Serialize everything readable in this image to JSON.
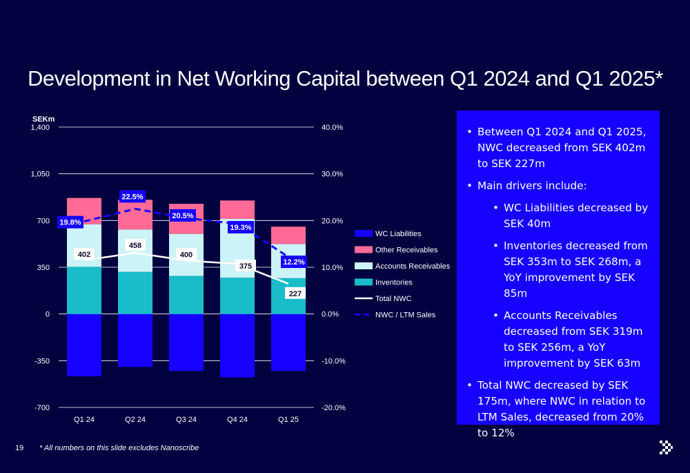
{
  "title": "Development in Net Working Capital between Q1 2024 and Q1 2025*",
  "footnote": "* All numbers on this slide excludes Nanoscribe",
  "page_number": "19",
  "logo_icon": "double-chevron-right-icon",
  "colors": {
    "background": "#02013f",
    "wc_liabilities": "#1600ff",
    "other_receivables": "#ff6b96",
    "accounts_receivables": "#ccf3f8",
    "inventories": "#19bcc8",
    "total_nwc": "#ffffff",
    "nwc_ltm": "#1600ff",
    "panel": "#1600ff"
  },
  "chart_data": {
    "type": "bar",
    "unit_label": "SEKm",
    "categories": [
      "Q1 24",
      "Q2 24",
      "Q3 24",
      "Q4 24",
      "Q1 25"
    ],
    "ylim": [
      -700,
      1400
    ],
    "yticks": [
      "1,400",
      "1,050",
      "700",
      "350",
      "0",
      "-350",
      "-700"
    ],
    "ytick_values": [
      1400,
      1050,
      700,
      350,
      0,
      -350,
      -700
    ],
    "y2lim": [
      -20,
      40
    ],
    "y2ticks": [
      "40.0%",
      "30.0%",
      "20.0%",
      "10.0%",
      "0.0%",
      "-10.0%",
      "-20.0%"
    ],
    "y2tick_values": [
      40,
      30,
      20,
      10,
      0,
      -10,
      -20
    ],
    "series": [
      {
        "name": "WC Liabilities",
        "values": [
          -467,
          -397,
          -427,
          -475,
          -427
        ]
      },
      {
        "name": "Inventories",
        "values": [
          353,
          315,
          285,
          272,
          268
        ]
      },
      {
        "name": "Accounts Receivables",
        "values": [
          319,
          318,
          315,
          440,
          256
        ]
      },
      {
        "name": "Other Receivables",
        "values": [
          197,
          222,
          225,
          138,
          130
        ]
      },
      {
        "name": "Total NWC",
        "values": [
          402,
          458,
          400,
          375,
          227
        ],
        "labels": [
          "402",
          "458",
          "400",
          "375",
          "227"
        ]
      },
      {
        "name": "NWC / LTM Sales",
        "values": [
          19.8,
          22.5,
          20.5,
          19.3,
          12.2
        ],
        "labels": [
          "19.8%",
          "22.5%",
          "20.5%",
          "19.3%",
          "12.2%"
        ]
      }
    ],
    "legend": [
      "WC Liabilities",
      "Other Receivables",
      "Accounts Receivables",
      "Inventories",
      "Total NWC",
      "NWC / LTM Sales"
    ],
    "legend_position": "right",
    "grid": true
  },
  "panel": {
    "bullets": [
      {
        "level": 1,
        "text": "Between Q1 2024 and Q1 2025, NWC decreased from SEK 402m to SEK 227m"
      },
      {
        "level": 1,
        "text": "Main drivers include:"
      },
      {
        "level": 2,
        "text": "WC Liabilities decreased by SEK 40m"
      },
      {
        "level": 2,
        "text": "Inventories decreased from SEK 353m to SEK 268m, a YoY improvement by SEK 85m"
      },
      {
        "level": 2,
        "text": "Accounts Receivables decreased from SEK 319m to SEK 256m, a YoY improvement by SEK 63m"
      },
      {
        "level": 1,
        "text": "Total NWC decreased by SEK 175m, where NWC in relation to LTM Sales, decreased from 20% to 12%"
      }
    ]
  }
}
